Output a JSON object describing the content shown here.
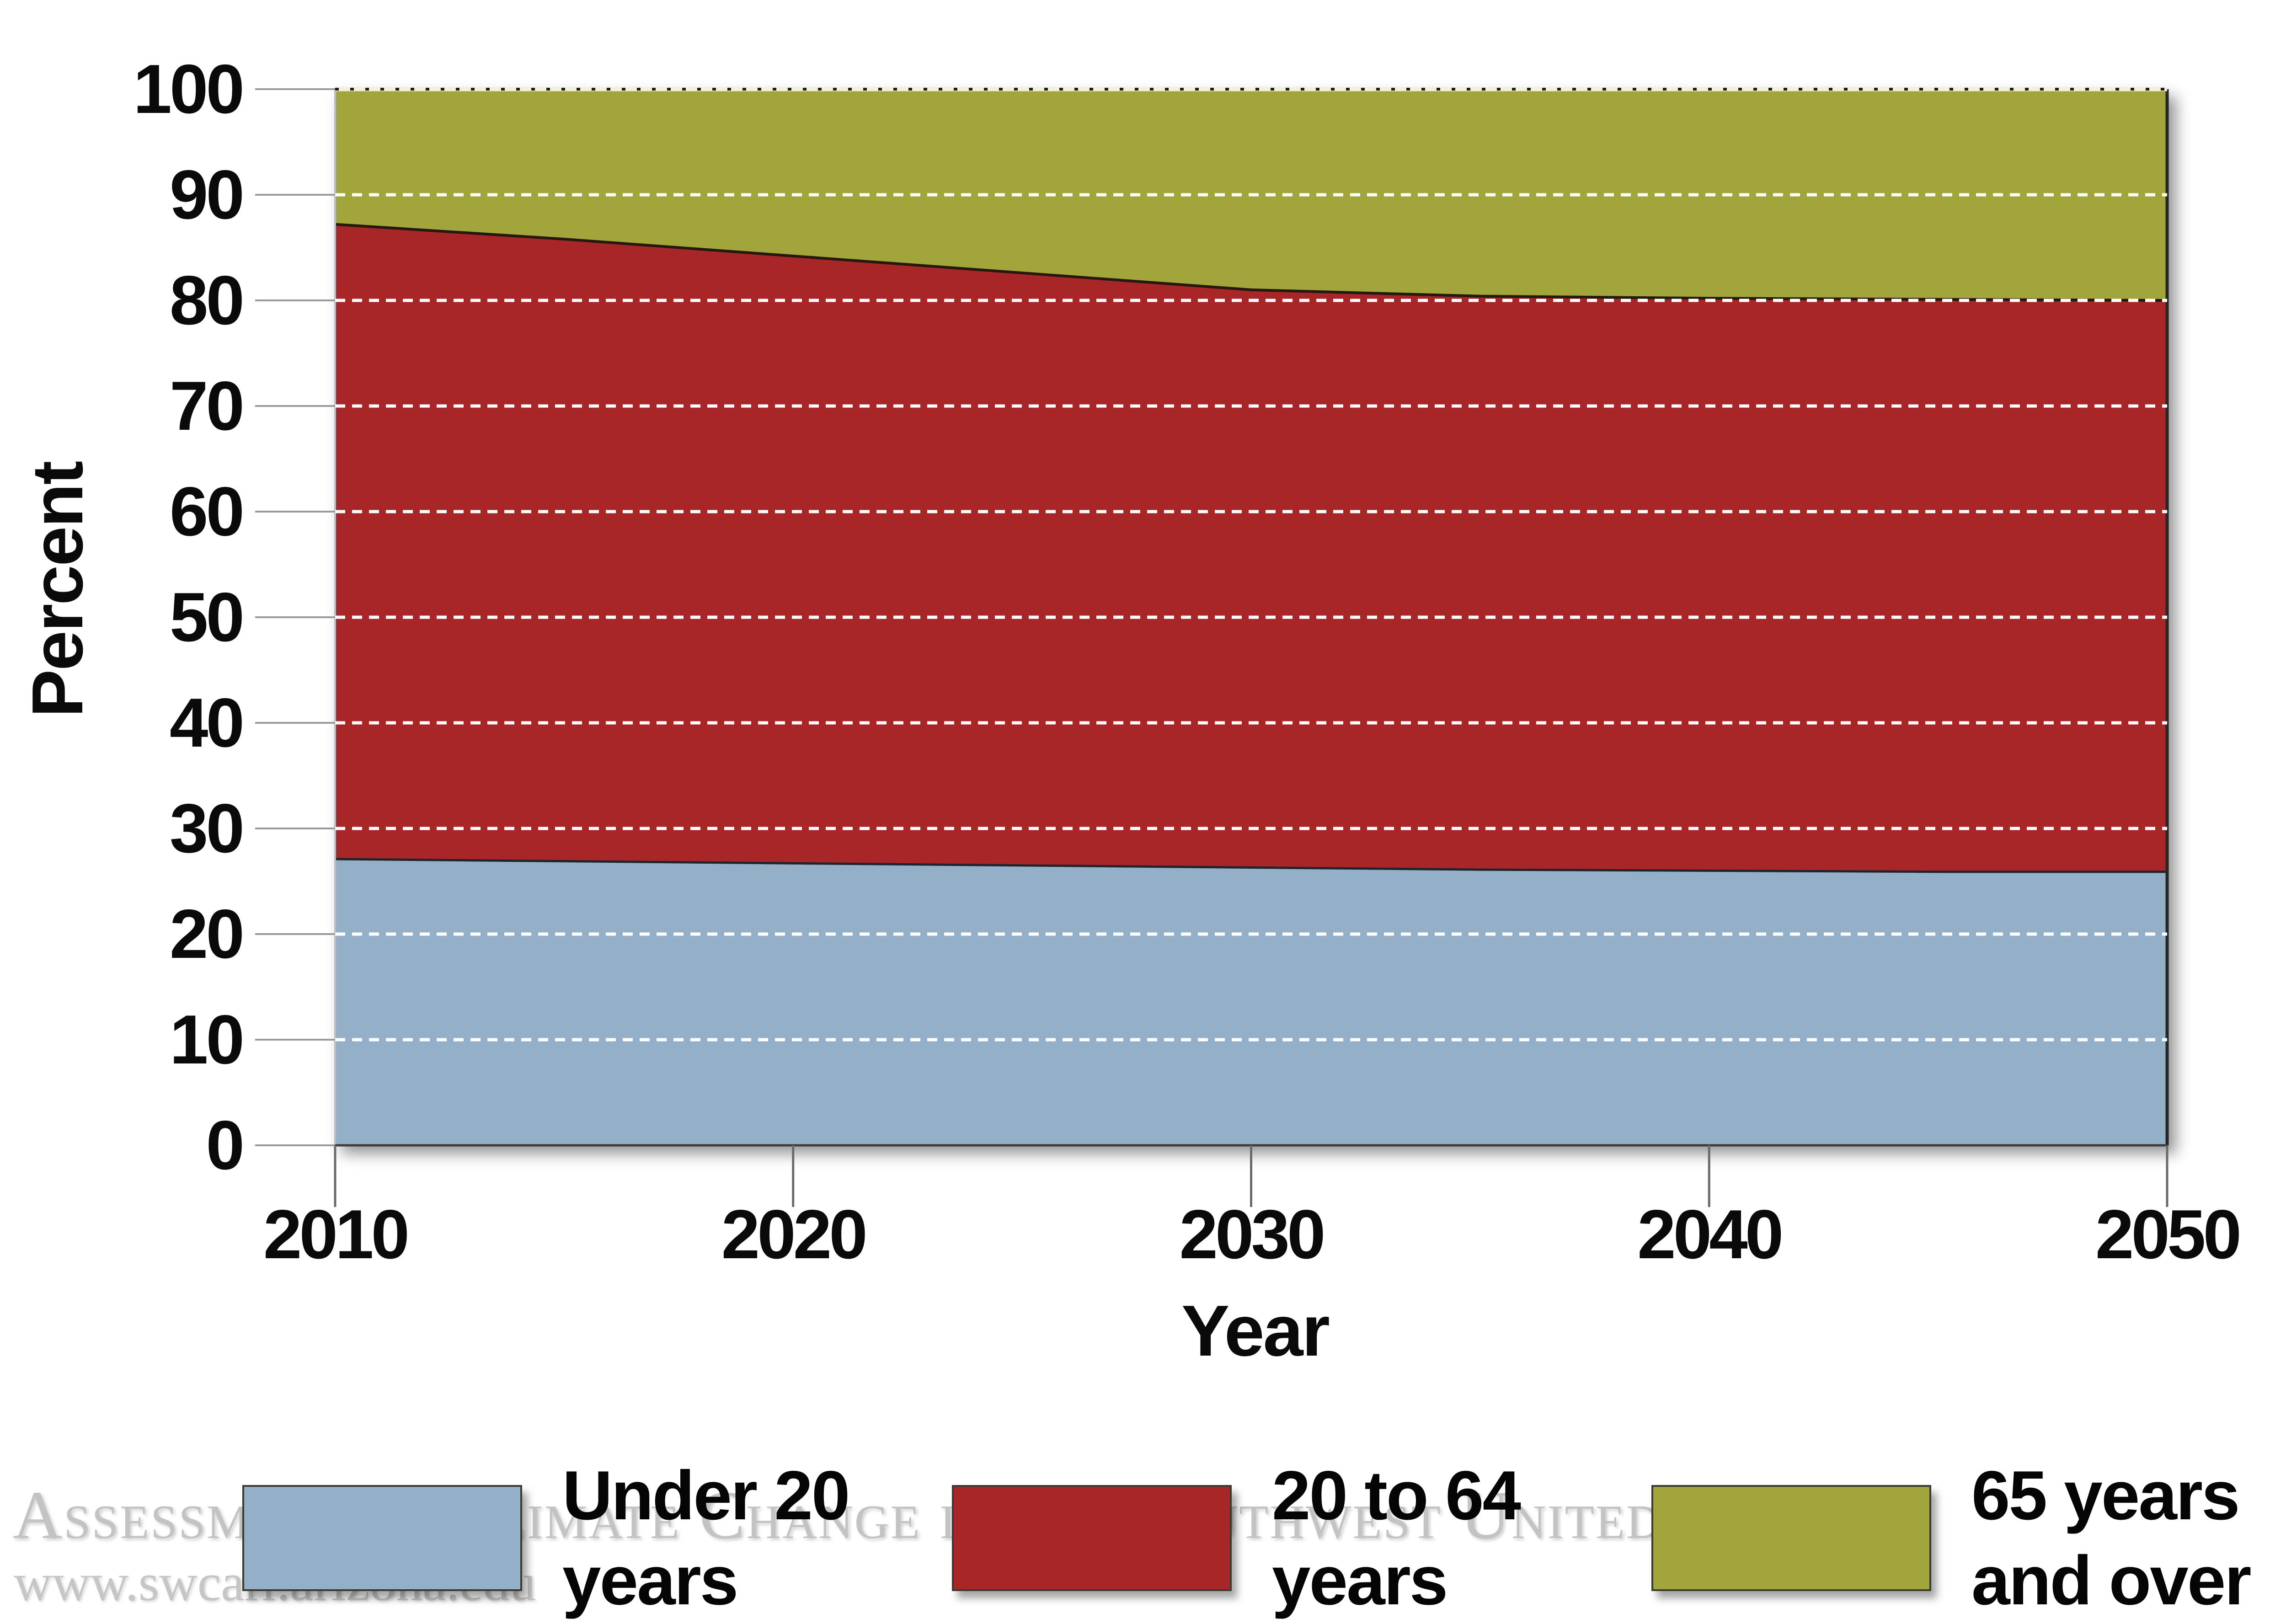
{
  "watermark": {
    "line1": "Assessment of Climate Change in the Southwest United States",
    "line2": "www.swcarr.arizona.edu"
  },
  "legend": {
    "items": [
      {
        "line1": "Under 20",
        "line2": "years",
        "color": "#93b0c8"
      },
      {
        "line1": "20 to 64",
        "line2": "years",
        "color": "#a92628"
      },
      {
        "line1": "65 years",
        "line2": "and over",
        "color": "#a2a53b"
      }
    ]
  },
  "chart_data": {
    "type": "area",
    "stacked": true,
    "title": "",
    "xlabel": "Year",
    "ylabel": "Percent",
    "x": [
      2010,
      2015,
      2020,
      2025,
      2030,
      2035,
      2040,
      2045,
      2050
    ],
    "series": [
      {
        "name": "Under 20 years",
        "color": "#93b0c8",
        "values": [
          27.1,
          26.9,
          26.7,
          26.5,
          26.3,
          26.1,
          26.0,
          25.9,
          25.9
        ]
      },
      {
        "name": "20 to 64 years",
        "color": "#a92628",
        "values": [
          60.1,
          58.9,
          57.5,
          56.1,
          54.7,
          54.3,
          54.2,
          54.2,
          54.1
        ]
      },
      {
        "name": "65 years and over",
        "color": "#a2a53b",
        "values": [
          12.8,
          14.2,
          15.8,
          17.4,
          19.0,
          19.6,
          19.8,
          19.9,
          20.0
        ]
      }
    ],
    "xticks": [
      2010,
      2020,
      2030,
      2040,
      2050
    ],
    "yticks": [
      0,
      10,
      20,
      30,
      40,
      50,
      60,
      70,
      80,
      90,
      100
    ],
    "xlim": [
      2010,
      2050
    ],
    "ylim": [
      0,
      100
    ],
    "grid": {
      "visible": true,
      "color": "#ffffff",
      "style": "dashed"
    },
    "top_border_style": "black-dotted-on-cream",
    "legend_position": "bottom"
  }
}
